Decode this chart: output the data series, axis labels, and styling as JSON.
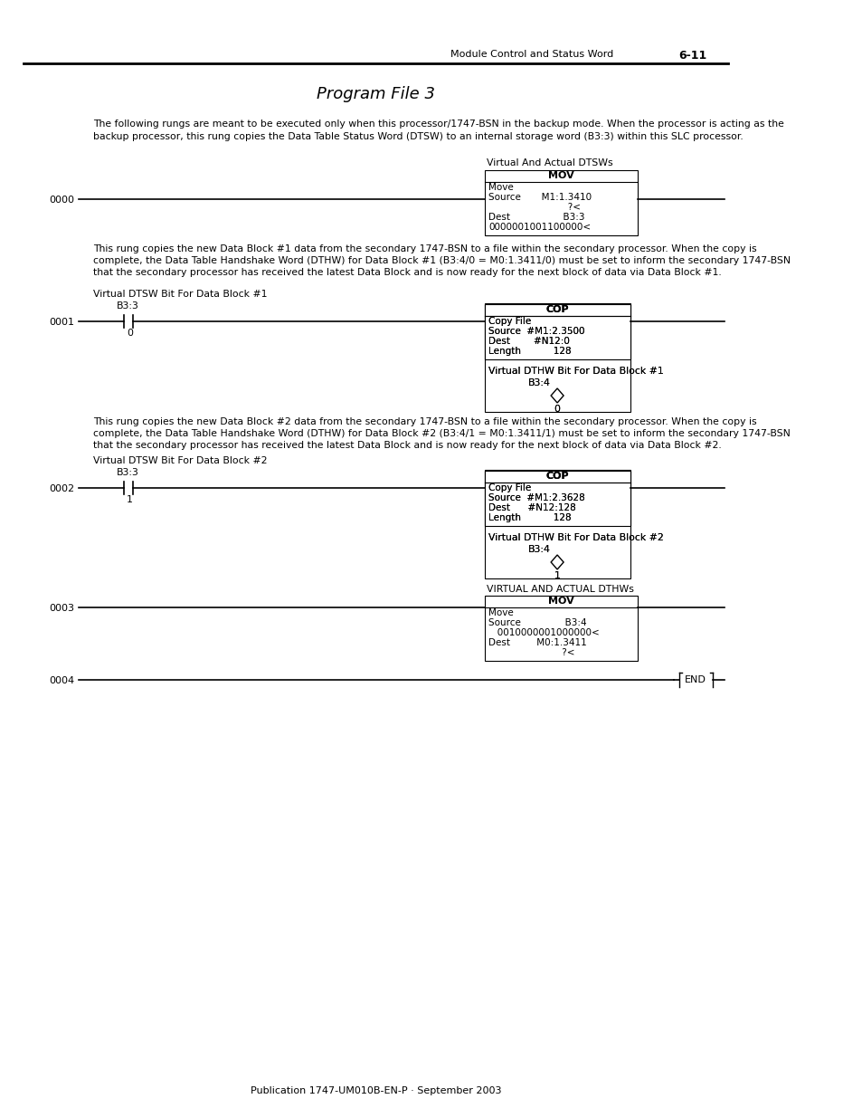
{
  "title": "Program File 3",
  "header_left": "Module Control and Status Word",
  "header_right": "6-11",
  "footer": "Publication 1747-UM010B-EN-P · September 2003",
  "intro_text1": "The following rungs are meant to be executed only when this processor/1747-BSN in the backup mode. When the processor is acting as the",
  "intro_text2": "backup processor, this rung copies the Data Table Status Word (DTSW) to an internal storage word (B3:3) within this SLC processor.",
  "rung0_label": "0000",
  "rung0_annotation": "Virtual And Actual DTSWs",
  "rung0_box_title": "MOV",
  "rung0_line1": "Move",
  "rung0_line2": "Source       M1:1.3410",
  "rung0_line3": "                           ?<",
  "rung0_line4": "Dest                  B3:3",
  "rung0_line5": "0000001001100000<",
  "rung0_desc1": "This rung copies the new Data Block #1 data from the secondary 1747-BSN to a file within the secondary processor. When the copy is",
  "rung0_desc2": "complete, the Data Table Handshake Word (DTHW) for Data Block #1 (B3:4/0 = M0:1.3411/0) must be set to inform the secondary 1747-BSN",
  "rung0_desc3": "that the secondary processor has received the latest Data Block and is now ready for the next block of data via Data Block #1.",
  "rung1_label": "0001",
  "rung1_contact_label": "Virtual DTSW Bit For Data Block #1",
  "rung1_contact_name": "B3:3",
  "rung1_contact_bit": "0",
  "rung1_box_title": "COP",
  "rung1_line1": "Copy File",
  "rung1_line2": "Source  #M1:2.3500",
  "rung1_line3": "Dest        #N12:0",
  "rung1_line4": "Length           128",
  "rung1_output_annotation": "Virtual DTHW Bit For Data Block #1",
  "rung1_output_name": "B3:4",
  "rung1_output_bit": "0",
  "rung1_desc1": "This rung copies the new Data Block #2 data from the secondary 1747-BSN to a file within the secondary processor. When the copy is",
  "rung1_desc2": "complete, the Data Table Handshake Word (DTHW) for Data Block #2 (B3:4/1 = M0:1.3411/1) must be set to inform the secondary 1747-BSN",
  "rung1_desc3": "that the secondary processor has received the latest Data Block and is now ready for the next block of data via Data Block #2.",
  "rung2_label": "0002",
  "rung2_contact_label": "Virtual DTSW Bit For Data Block #2",
  "rung2_contact_name": "B3:3",
  "rung2_contact_bit": "1",
  "rung2_box_title": "COP",
  "rung2_line1": "Copy File",
  "rung2_line2": "Source  #M1:2.3628",
  "rung2_line3": "Dest      #N12:128",
  "rung2_line4": "Length           128",
  "rung2_output_annotation": "Virtual DTHW Bit For Data Block #2",
  "rung2_output_name": "B3:4",
  "rung2_output_bit": "1",
  "rung3_label": "0003",
  "rung3_annotation": "VIRTUAL AND ACTUAL DTHWs",
  "rung3_box_title": "MOV",
  "rung3_line1": "Move",
  "rung3_line2": "Source               B3:4",
  "rung3_line3": "   0010000001000000<",
  "rung3_line4": "Dest         M0:1.3411",
  "rung3_line5": "                         ?<",
  "rung4_label": "0004",
  "bg_color": "#ffffff",
  "text_color": "#000000"
}
